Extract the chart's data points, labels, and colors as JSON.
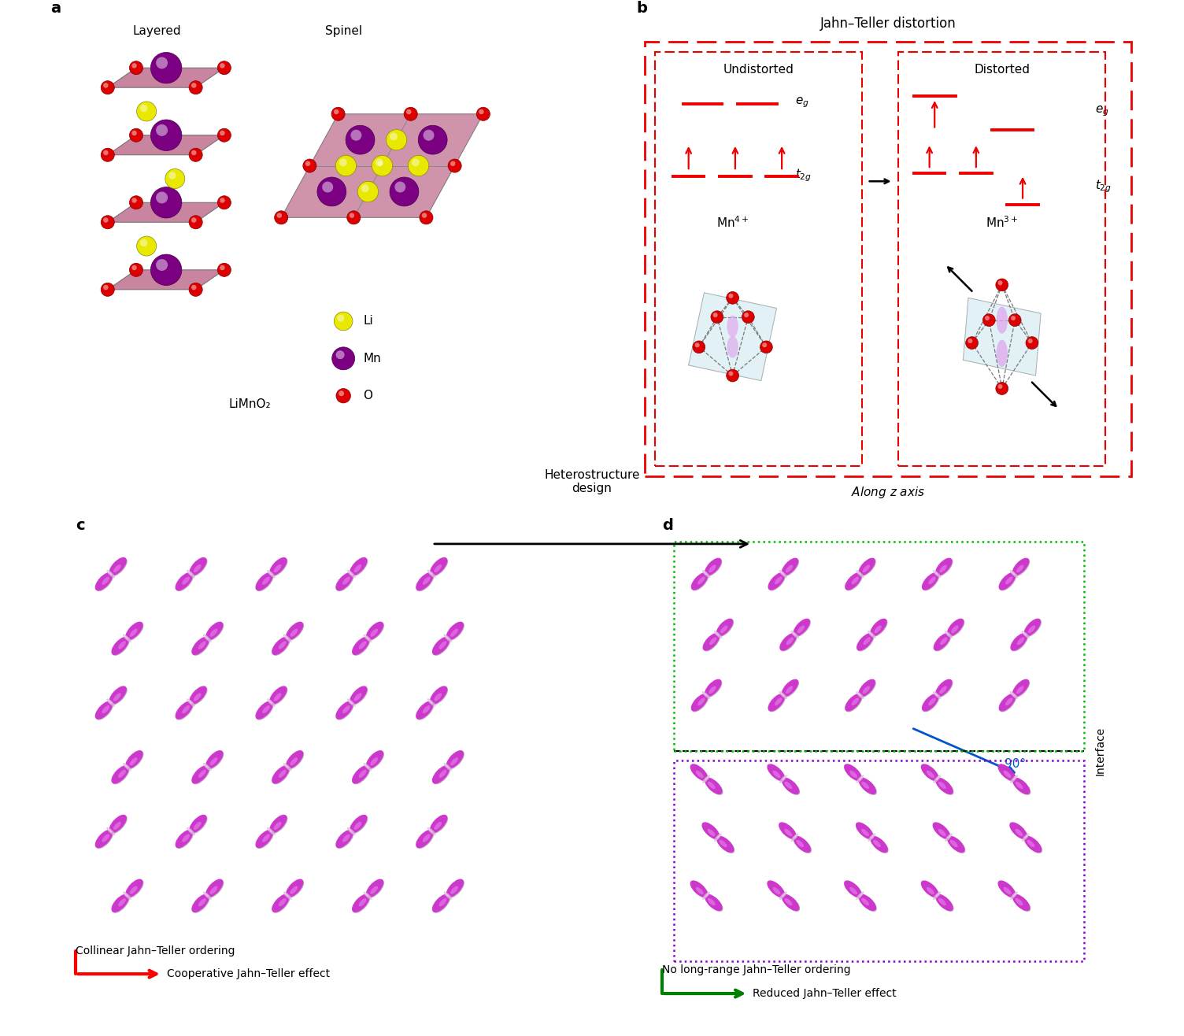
{
  "panel_labels": [
    "a",
    "b",
    "c",
    "d"
  ],
  "panel_label_fontsize": 14,
  "panel_label_weight": "bold",
  "background_color": "#ffffff",
  "panel_b_title": "Jahn–Teller distortion",
  "panel_b_left_label": "Undistorted",
  "panel_b_right_label": "Distorted",
  "panel_b_bottom": "Along z axis",
  "layered_label": "Layered",
  "spinel_label": "Spinel",
  "limno2_label": "LiMnO₂",
  "li_color": "#e8e800",
  "mn_color": "#7B0082",
  "o_color": "#dd0000",
  "slab_color": "#c07090",
  "red_line_color": "#ee0000",
  "panel_c_label": "Collinear Jahn–Teller ordering",
  "panel_c_arrow": "Cooperative Jahn–Teller effect",
  "panel_d_label": "No long-range Jahn–Teller ordering",
  "panel_d_arrow": "Reduced Jahn–Teller effect",
  "heterostructure_text": "Heterostructure\ndesign",
  "angle_text": "90°",
  "interface_text": "Interface",
  "green_box_color": "#00bb00",
  "purple_box_color": "#8800cc",
  "orbital_color_body": "#cc33cc",
  "orbital_color_highlight": "#ee88ee",
  "orbital_color_shadow": "#882288",
  "orbital_ring_color": "#ddbbdd"
}
